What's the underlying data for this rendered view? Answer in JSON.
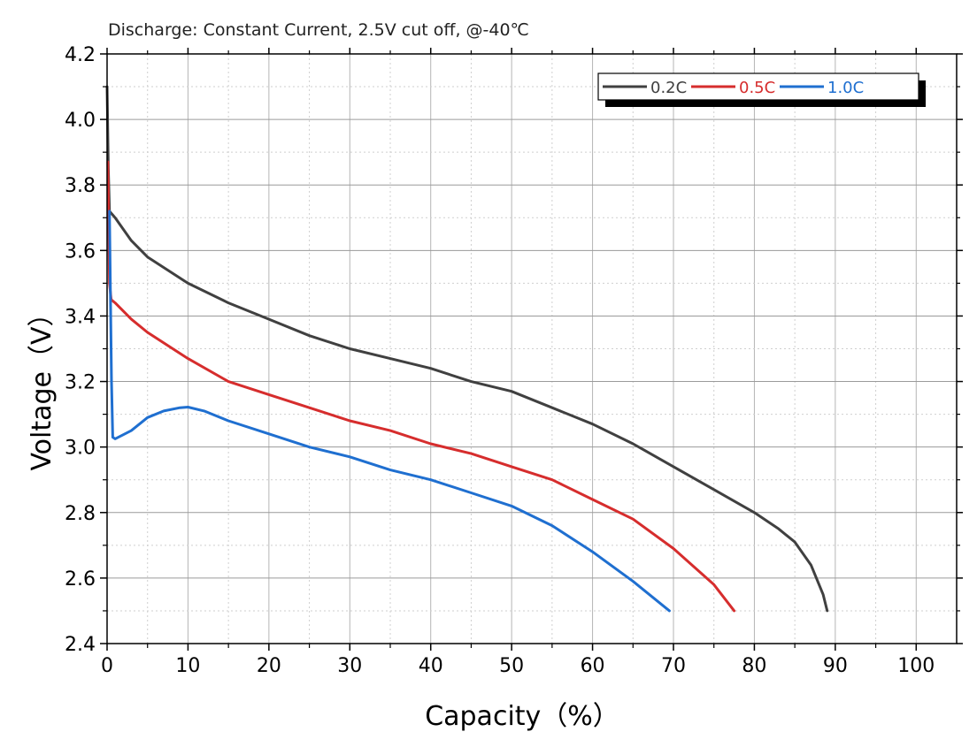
{
  "chart_data": {
    "type": "line",
    "title": "Discharge: Constant Current, 2.5V cut off, @-40℃",
    "xlabel": "Capacity（%）",
    "ylabel": "Voltage（V）",
    "xlim": [
      0,
      105
    ],
    "ylim": [
      2.4,
      4.2
    ],
    "x_ticks": [
      0,
      10,
      20,
      30,
      40,
      50,
      60,
      70,
      80,
      90,
      100
    ],
    "y_ticks": [
      2.4,
      2.6,
      2.8,
      3.0,
      3.2,
      3.4,
      3.6,
      3.8,
      4.0,
      4.2
    ],
    "x_tick_labels": [
      "0",
      "10",
      "20",
      "30",
      "40",
      "50",
      "60",
      "70",
      "80",
      "90",
      "100"
    ],
    "y_tick_labels": [
      "2.4",
      "2.6",
      "2.8",
      "3.0",
      "3.2",
      "3.4",
      "3.6",
      "3.8",
      "4.0",
      "4.2"
    ],
    "grid": true,
    "legend_position": "top-right",
    "series": [
      {
        "name": "0.2C",
        "color": "#404040",
        "points": [
          [
            0,
            4.1
          ],
          [
            0.15,
            3.85
          ],
          [
            0.3,
            3.72
          ],
          [
            1,
            3.7
          ],
          [
            3,
            3.63
          ],
          [
            5,
            3.58
          ],
          [
            10,
            3.5
          ],
          [
            15,
            3.44
          ],
          [
            20,
            3.39
          ],
          [
            25,
            3.34
          ],
          [
            30,
            3.3
          ],
          [
            35,
            3.27
          ],
          [
            40,
            3.24
          ],
          [
            45,
            3.2
          ],
          [
            50,
            3.17
          ],
          [
            55,
            3.12
          ],
          [
            60,
            3.07
          ],
          [
            65,
            3.01
          ],
          [
            70,
            2.94
          ],
          [
            75,
            2.87
          ],
          [
            80,
            2.8
          ],
          [
            83,
            2.75
          ],
          [
            85,
            2.71
          ],
          [
            87,
            2.64
          ],
          [
            88.5,
            2.55
          ],
          [
            89,
            2.5
          ]
        ]
      },
      {
        "name": "0.5C",
        "color": "#d62d2d",
        "points": [
          [
            0.1,
            3.87
          ],
          [
            0.2,
            3.7
          ],
          [
            0.3,
            3.5
          ],
          [
            0.5,
            3.45
          ],
          [
            1,
            3.44
          ],
          [
            3,
            3.39
          ],
          [
            5,
            3.35
          ],
          [
            10,
            3.27
          ],
          [
            15,
            3.2
          ],
          [
            20,
            3.16
          ],
          [
            25,
            3.12
          ],
          [
            30,
            3.08
          ],
          [
            35,
            3.05
          ],
          [
            40,
            3.01
          ],
          [
            45,
            2.98
          ],
          [
            50,
            2.94
          ],
          [
            55,
            2.9
          ],
          [
            60,
            2.84
          ],
          [
            65,
            2.78
          ],
          [
            70,
            2.69
          ],
          [
            75,
            2.58
          ],
          [
            77.5,
            2.5
          ]
        ]
      },
      {
        "name": "1.0C",
        "color": "#1f6fd0",
        "points": [
          [
            0.3,
            3.72
          ],
          [
            0.45,
            3.4
          ],
          [
            0.55,
            3.2
          ],
          [
            0.7,
            3.03
          ],
          [
            1,
            3.025
          ],
          [
            3,
            3.05
          ],
          [
            5,
            3.09
          ],
          [
            7,
            3.11
          ],
          [
            9,
            3.12
          ],
          [
            10,
            3.122
          ],
          [
            12,
            3.11
          ],
          [
            15,
            3.08
          ],
          [
            20,
            3.04
          ],
          [
            25,
            3.0
          ],
          [
            30,
            2.97
          ],
          [
            35,
            2.93
          ],
          [
            40,
            2.9
          ],
          [
            45,
            2.86
          ],
          [
            50,
            2.82
          ],
          [
            55,
            2.76
          ],
          [
            60,
            2.68
          ],
          [
            65,
            2.59
          ],
          [
            69.5,
            2.5
          ]
        ]
      }
    ]
  }
}
